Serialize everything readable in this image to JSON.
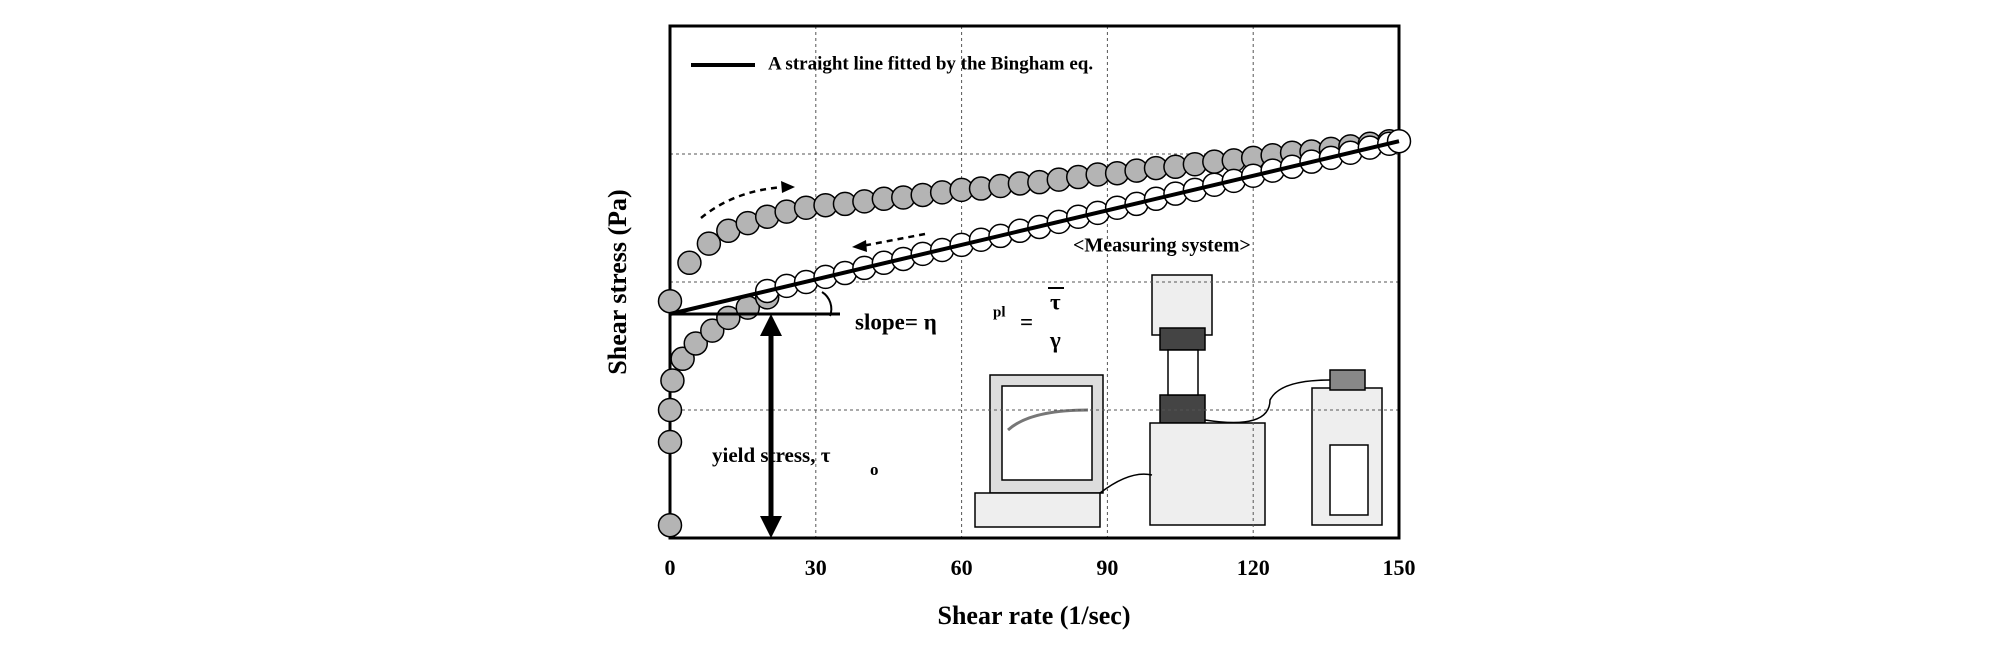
{
  "chart_data": {
    "type": "scatter",
    "xlabel": "Shear rate (1/sec)",
    "ylabel": "Shear stress (Pa)",
    "xlim": [
      0,
      150
    ],
    "xticks": [
      0,
      30,
      60,
      90,
      120,
      150
    ],
    "ylim": [
      0,
      4
    ],
    "ygrid": [
      1,
      2,
      3
    ],
    "grid": true,
    "legend": "top-left",
    "series": [
      {
        "color": "#b4b4b4",
        "x": [
          0,
          0,
          0,
          0.5,
          2.6,
          5.3,
          8.7,
          12,
          16,
          20,
          0,
          4,
          8,
          12,
          16,
          20,
          24,
          28,
          32,
          36,
          40,
          44,
          48,
          52,
          56,
          60,
          64,
          68,
          72,
          76,
          80,
          84,
          88,
          92,
          96,
          100,
          104,
          108,
          112,
          116,
          120,
          124,
          128,
          132,
          136,
          140,
          144,
          148
        ],
        "values": [
          0.1,
          0.75,
          1.0,
          1.23,
          1.4,
          1.52,
          1.62,
          1.72,
          1.8,
          1.88,
          1.85,
          2.15,
          2.3,
          2.4,
          2.46,
          2.51,
          2.55,
          2.58,
          2.6,
          2.61,
          2.63,
          2.65,
          2.66,
          2.68,
          2.7,
          2.72,
          2.73,
          2.75,
          2.77,
          2.78,
          2.8,
          2.82,
          2.84,
          2.85,
          2.87,
          2.89,
          2.9,
          2.92,
          2.94,
          2.95,
          2.97,
          2.99,
          3.01,
          3.02,
          3.04,
          3.06,
          3.08,
          3.1
        ]
      },
      {
        "color": "#ffffff",
        "x": [
          20,
          24,
          28,
          32,
          36,
          40,
          44,
          48,
          52,
          56,
          60,
          64,
          68,
          72,
          76,
          80,
          84,
          88,
          92,
          96,
          100,
          104,
          108,
          112,
          116,
          120,
          124,
          128,
          132,
          136,
          140,
          144,
          148,
          150
        ],
        "values": [
          1.93,
          1.97,
          2.0,
          2.04,
          2.07,
          2.11,
          2.15,
          2.18,
          2.22,
          2.25,
          2.29,
          2.33,
          2.36,
          2.4,
          2.43,
          2.47,
          2.51,
          2.54,
          2.58,
          2.61,
          2.65,
          2.69,
          2.72,
          2.76,
          2.79,
          2.83,
          2.87,
          2.9,
          2.94,
          2.97,
          3.01,
          3.05,
          3.08,
          3.1
        ]
      },
      {
        "type": "line",
        "name": "A straight line fitted by the Bingham eq.",
        "color": "#000000",
        "x": [
          0,
          150
        ],
        "values": [
          1.75,
          3.1
        ]
      }
    ],
    "annotations": [
      "<Measuring system>",
      "slope= η",
      "pl",
      "=",
      "τ",
      "γ",
      "yield stress, τ",
      "o"
    ]
  }
}
